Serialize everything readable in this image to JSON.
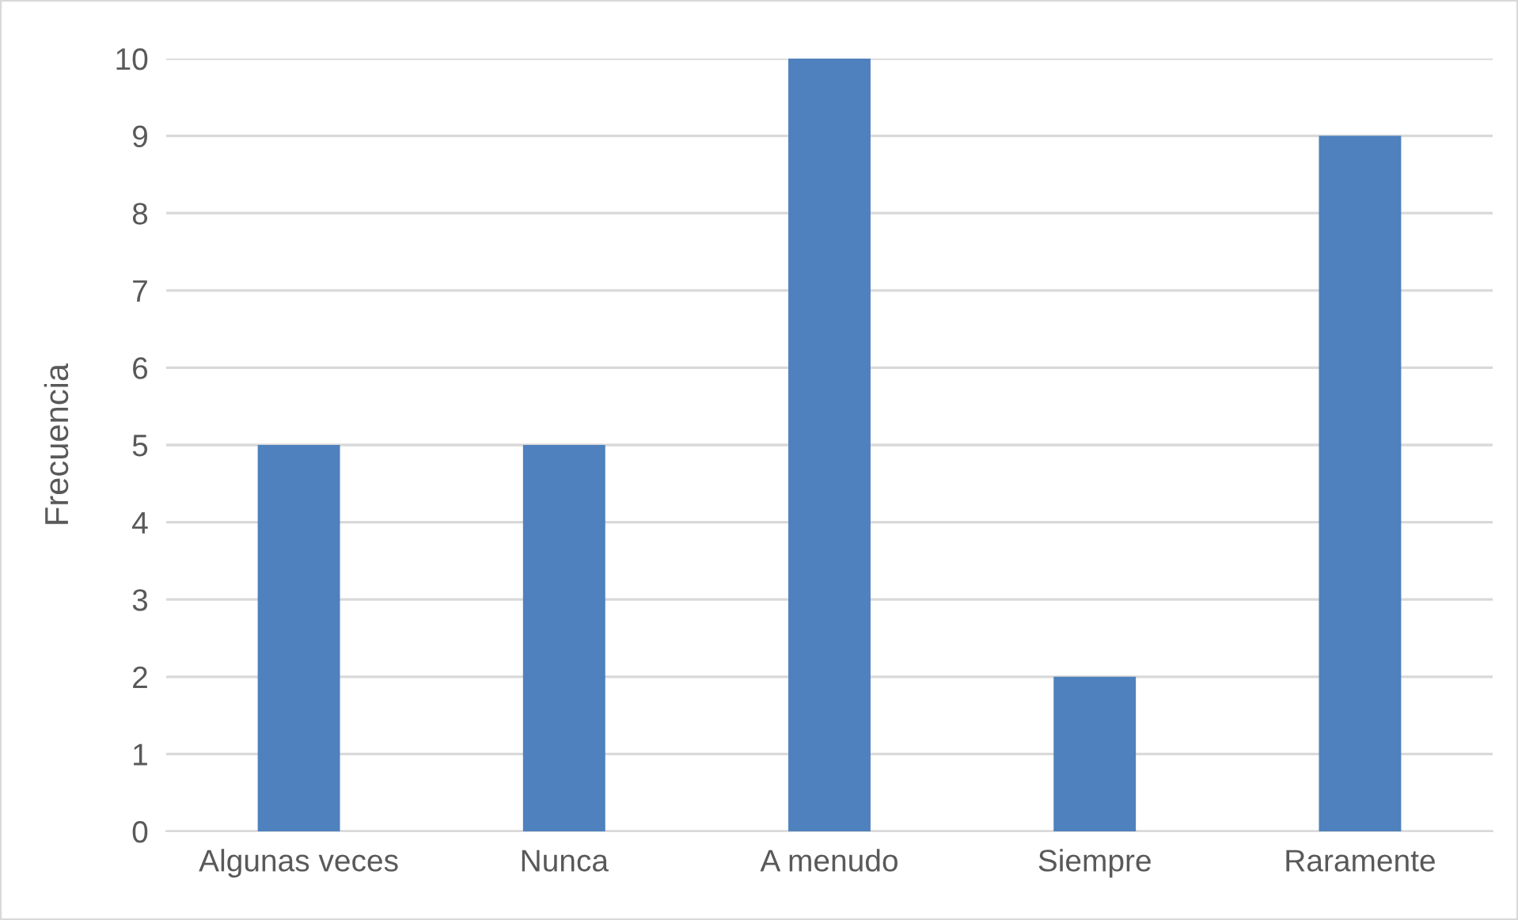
{
  "chart_data": {
    "type": "bar",
    "ylabel": "Frecuencia",
    "categories": [
      "Algunas veces",
      "Nunca",
      "A menudo",
      "Siempre",
      "Raramente"
    ],
    "values": [
      5,
      5,
      10,
      2,
      9
    ],
    "color": "#4e81bd",
    "ylim": [
      0,
      10
    ],
    "yticks": [
      0,
      1,
      2,
      3,
      4,
      5,
      6,
      7,
      8,
      9,
      10
    ],
    "grid": "y",
    "legend": false
  }
}
